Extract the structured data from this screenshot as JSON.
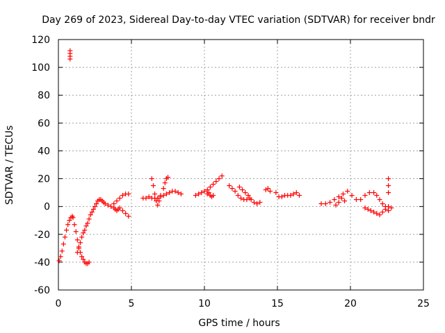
{
  "chart_data": {
    "type": "scatter",
    "title": "Day 269 of 2023, Sidereal Day-to-day VTEC variation (SDTVAR) for receiver bndr",
    "xlabel": "GPS time / hours",
    "ylabel": "SDTVAR / TECUs",
    "xlim": [
      0,
      25
    ],
    "ylim": [
      -60,
      120
    ],
    "xticks": [
      0,
      5,
      10,
      15,
      20,
      25
    ],
    "yticks": [
      -60,
      -40,
      -20,
      0,
      20,
      40,
      60,
      80,
      100,
      120
    ],
    "grid": true,
    "marker": "plus",
    "color": "#ff0000",
    "series": [
      {
        "name": "SDTVAR",
        "x": [
          0.8,
          0.8,
          0.8,
          0.8,
          0.05,
          0.15,
          0.25,
          0.35,
          0.45,
          0.55,
          0.65,
          0.75,
          0.85,
          0.95,
          1.0,
          1.1,
          1.2,
          1.3,
          1.4,
          1.5,
          1.6,
          1.7,
          1.8,
          1.9,
          2.0,
          2.1,
          1.3,
          1.4,
          1.5,
          1.6,
          1.7,
          1.8,
          1.9,
          2.0,
          2.1,
          2.2,
          2.3,
          2.4,
          2.5,
          2.6,
          2.7,
          2.8,
          2.9,
          3.0,
          3.1,
          3.2,
          3.4,
          3.6,
          3.8,
          4.0,
          4.2,
          4.4,
          4.6,
          4.8,
          3.8,
          3.9,
          4.0,
          4.1,
          4.2,
          4.4,
          4.6,
          4.8,
          5.8,
          6.0,
          6.2,
          6.4,
          6.6,
          6.8,
          7.0,
          7.2,
          7.4,
          7.6,
          7.8,
          8.0,
          8.2,
          8.4,
          6.4,
          6.5,
          6.6,
          6.7,
          6.8,
          6.9,
          7.0,
          7.2,
          7.3,
          7.4,
          7.5,
          9.4,
          9.6,
          9.8,
          10.0,
          10.2,
          10.4,
          10.6,
          10.8,
          11.0,
          11.2,
          10.2,
          10.3,
          10.4,
          10.5,
          10.6,
          11.7,
          11.9,
          12.1,
          12.3,
          12.5,
          12.7,
          12.9,
          13.1,
          12.4,
          12.6,
          12.8,
          13.0,
          13.2,
          13.4,
          13.6,
          13.8,
          14.2,
          14.35,
          14.5,
          14.9,
          15.1,
          15.3,
          15.5,
          15.7,
          15.9,
          16.1,
          16.3,
          16.5,
          18.0,
          18.3,
          18.6,
          18.9,
          19.2,
          19.5,
          19.8,
          20.1,
          20.4,
          20.7,
          21.0,
          21.3,
          19.0,
          19.2,
          19.4,
          19.6,
          21.0,
          21.2,
          21.4,
          21.6,
          21.8,
          22.0,
          22.2,
          22.4,
          22.6,
          22.8,
          21.6,
          21.8,
          22.0,
          22.2,
          22.4,
          22.6,
          22.6,
          22.6,
          22.6
        ],
        "y": [
          112,
          110,
          108,
          106,
          -39,
          -36,
          -32,
          -27,
          -22,
          -17,
          -13,
          -10,
          -8,
          -7,
          -8,
          -13,
          -18,
          -24,
          -29,
          -33,
          -36,
          -38,
          -40,
          -41,
          -41,
          -40,
          -33,
          -30,
          -26,
          -22,
          -19,
          -17,
          -14,
          -12,
          -9,
          -6,
          -4,
          -2,
          0,
          2,
          4,
          5,
          5,
          4,
          3,
          2,
          1,
          0,
          2,
          4,
          6,
          8,
          9,
          9,
          -1,
          -2,
          -3,
          -2,
          -1,
          -3,
          -5,
          -7,
          6,
          6,
          7,
          6,
          6,
          6,
          7,
          8,
          9,
          10,
          11,
          11,
          10,
          9,
          20,
          15,
          9,
          4,
          1,
          4,
          8,
          13,
          17,
          20,
          21,
          8,
          9,
          10,
          11,
          12,
          14,
          16,
          18,
          20,
          22,
          9,
          10,
          8,
          7,
          8,
          15,
          13,
          11,
          8,
          6,
          5,
          5,
          6,
          14,
          12,
          10,
          8,
          5,
          3,
          2,
          3,
          12,
          13,
          11,
          10,
          7,
          7,
          8,
          8,
          8,
          9,
          10,
          8,
          2,
          2,
          3,
          5,
          7,
          9,
          11,
          8,
          5,
          5,
          8,
          10,
          1,
          3,
          6,
          4,
          -1,
          -2,
          -3,
          -4,
          -5,
          -6,
          -4,
          -2,
          0,
          -1,
          10,
          8,
          5,
          2,
          0,
          -3,
          20,
          15,
          10
        ]
      }
    ]
  }
}
